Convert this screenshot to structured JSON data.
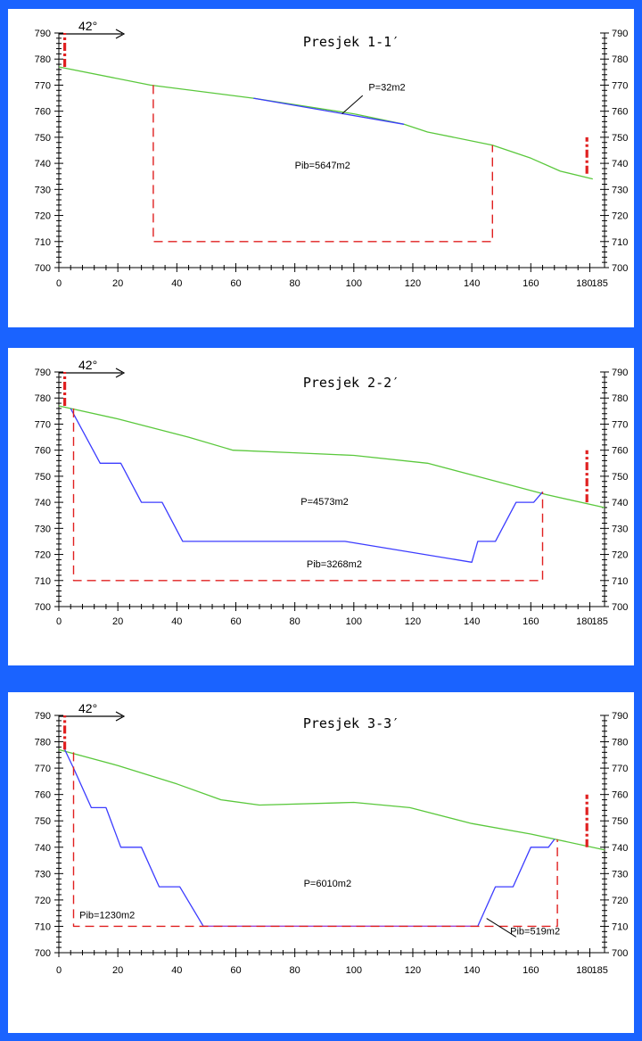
{
  "chart_data": [
    {
      "type": "line",
      "title": "Presjek 1-1′",
      "direction_label": "42°",
      "xlim": [
        0,
        185
      ],
      "ylim": [
        700,
        790
      ],
      "x_ticks": [
        "0",
        "20",
        "40",
        "60",
        "80",
        "100",
        "120",
        "140",
        "160",
        "180",
        "185"
      ],
      "y_ticks_left": [
        "700",
        "710",
        "720",
        "730",
        "740",
        "750",
        "760",
        "770",
        "780",
        "790"
      ],
      "y_ticks_right": [
        "700",
        "710",
        "720",
        "730",
        "740",
        "750",
        "760",
        "770",
        "780",
        "790"
      ],
      "grid": false,
      "series": [
        {
          "color": "#5ac83c",
          "style": "solid",
          "points": [
            [
              0,
              777
            ],
            [
              31,
              770
            ],
            [
              66,
              765
            ],
            [
              100,
              759
            ],
            [
              117,
              755
            ],
            [
              125,
              752
            ],
            [
              147,
              747
            ],
            [
              160,
              742
            ],
            [
              170,
              737
            ],
            [
              181,
              734
            ]
          ]
        },
        {
          "color": "#3c3cff",
          "style": "solid",
          "points": [
            [
              66,
              765
            ],
            [
              117,
              755
            ]
          ]
        },
        {
          "color": "#e02020",
          "style": "dashed",
          "points": [
            [
              32,
              770
            ],
            [
              32,
              710
            ],
            [
              147,
              710
            ],
            [
              147,
              747
            ]
          ]
        },
        {
          "color": "#e02020",
          "style": "dashdot-thick",
          "points": [
            [
              2,
              777
            ],
            [
              2,
              790
            ]
          ]
        },
        {
          "color": "#e02020",
          "style": "dashdot-thick",
          "points": [
            [
              179,
              736
            ],
            [
              179,
              750
            ]
          ]
        }
      ],
      "annotations": [
        {
          "text": "P=32m2",
          "x": 105,
          "y": 768,
          "pointer": [
            [
              103,
              766
            ],
            [
              96,
              759
            ]
          ]
        },
        {
          "text": "Pib=5647m2",
          "x": 80,
          "y": 738
        }
      ]
    },
    {
      "type": "line",
      "title": "Presjek 2-2′",
      "direction_label": "42°",
      "xlim": [
        0,
        185
      ],
      "ylim": [
        700,
        790
      ],
      "x_ticks": [
        "0",
        "20",
        "40",
        "60",
        "80",
        "100",
        "120",
        "140",
        "160",
        "180",
        "185"
      ],
      "y_ticks_left": [
        "700",
        "710",
        "720",
        "730",
        "740",
        "750",
        "760",
        "770",
        "780",
        "790"
      ],
      "y_ticks_right": [
        "700",
        "710",
        "720",
        "730",
        "740",
        "750",
        "760",
        "770",
        "780",
        "790"
      ],
      "grid": false,
      "series": [
        {
          "color": "#5ac83c",
          "style": "solid",
          "points": [
            [
              0,
              777
            ],
            [
              20,
              772
            ],
            [
              44,
              765
            ],
            [
              59,
              760
            ],
            [
              80,
              759
            ],
            [
              100,
              758
            ],
            [
              125,
              755
            ],
            [
              145,
              749
            ],
            [
              165,
              743
            ],
            [
              185,
              738
            ]
          ]
        },
        {
          "color": "#3c3cff",
          "style": "solid",
          "points": [
            [
              4,
              776
            ],
            [
              14,
              755
            ],
            [
              21,
              755
            ],
            [
              28,
              740
            ],
            [
              35,
              740
            ],
            [
              42,
              725
            ],
            [
              97,
              725
            ],
            [
              140,
              717
            ],
            [
              142,
              725
            ],
            [
              148,
              725
            ],
            [
              155,
              740
            ],
            [
              161,
              740
            ],
            [
              164,
              744
            ]
          ]
        },
        {
          "color": "#e02020",
          "style": "dashed",
          "points": [
            [
              5,
              776
            ],
            [
              5,
              710
            ],
            [
              164,
              710
            ],
            [
              164,
              744
            ]
          ]
        },
        {
          "color": "#e02020",
          "style": "dashdot-thick",
          "points": [
            [
              2,
              777
            ],
            [
              2,
              790
            ]
          ]
        },
        {
          "color": "#e02020",
          "style": "dashdot-thick",
          "points": [
            [
              179,
              740
            ],
            [
              179,
              760
            ]
          ]
        }
      ],
      "annotations": [
        {
          "text": "P=4573m2",
          "x": 82,
          "y": 739
        },
        {
          "text": "Pib=3268m2",
          "x": 84,
          "y": 715
        }
      ]
    },
    {
      "type": "line",
      "title": "Presjek 3-3′",
      "direction_label": "42°",
      "xlim": [
        0,
        185
      ],
      "ylim": [
        700,
        790
      ],
      "x_ticks": [
        "0",
        "20",
        "40",
        "60",
        "80",
        "100",
        "120",
        "140",
        "160",
        "180",
        "185"
      ],
      "y_ticks_left": [
        "700",
        "710",
        "720",
        "730",
        "740",
        "750",
        "760",
        "770",
        "780",
        "790"
      ],
      "y_ticks_right": [
        "700",
        "710",
        "720",
        "730",
        "740",
        "750",
        "760",
        "770",
        "780",
        "790"
      ],
      "grid": false,
      "series": [
        {
          "color": "#5ac83c",
          "style": "solid",
          "points": [
            [
              0,
              777
            ],
            [
              20,
              771
            ],
            [
              40,
              764
            ],
            [
              55,
              758
            ],
            [
              68,
              756
            ],
            [
              100,
              757
            ],
            [
              119,
              755
            ],
            [
              140,
              749
            ],
            [
              160,
              745
            ],
            [
              185,
              739
            ]
          ]
        },
        {
          "color": "#3c3cff",
          "style": "solid",
          "points": [
            [
              2,
              777
            ],
            [
              5,
              770
            ],
            [
              11,
              755
            ],
            [
              16,
              755
            ],
            [
              21,
              740
            ],
            [
              28,
              740
            ],
            [
              34,
              725
            ],
            [
              41,
              725
            ],
            [
              49,
              710
            ],
            [
              142,
              710
            ],
            [
              148,
              725
            ],
            [
              154,
              725
            ],
            [
              160,
              740
            ],
            [
              166,
              740
            ],
            [
              168,
              743
            ]
          ]
        },
        {
          "color": "#aa44cc",
          "style": "solid",
          "points": [
            [
              49,
              710
            ],
            [
              142,
              710
            ]
          ]
        },
        {
          "color": "#e02020",
          "style": "dashed",
          "points": [
            [
              5,
              776
            ],
            [
              5,
              710
            ],
            [
              169,
              710
            ],
            [
              169,
              743
            ]
          ]
        },
        {
          "color": "#e02020",
          "style": "dashdot-thick",
          "points": [
            [
              2,
              777
            ],
            [
              2,
              790
            ]
          ]
        },
        {
          "color": "#e02020",
          "style": "dashdot-thick",
          "points": [
            [
              179,
              740
            ],
            [
              179,
              760
            ]
          ]
        }
      ],
      "annotations": [
        {
          "text": "P=6010m2",
          "x": 83,
          "y": 725
        },
        {
          "text": "Pib=1230m2",
          "x": 7,
          "y": 713
        },
        {
          "text": "Pib=519m2",
          "x": 153,
          "y": 707,
          "pointer": [
            [
              155,
              706
            ],
            [
              145,
              713
            ]
          ]
        }
      ]
    }
  ]
}
